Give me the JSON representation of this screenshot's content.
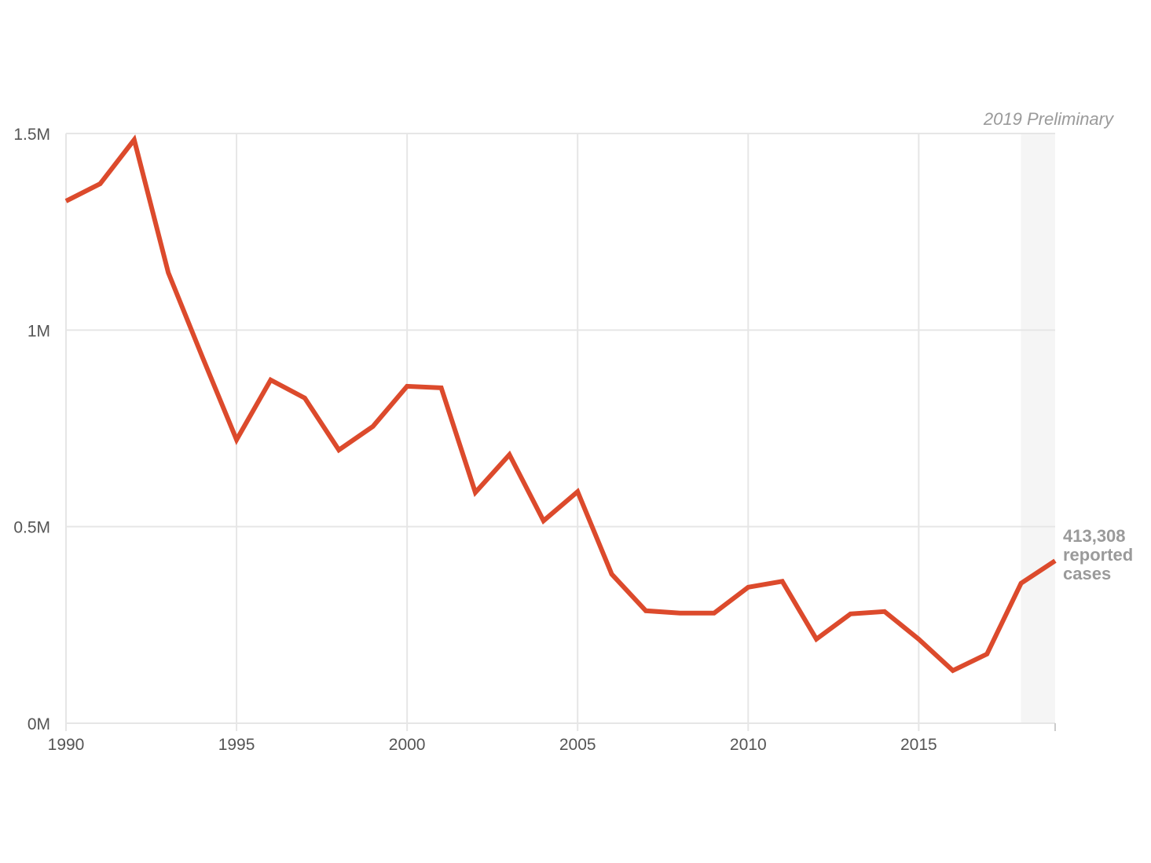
{
  "chart_data": {
    "type": "line",
    "title": "",
    "xlabel": "",
    "ylabel": "",
    "x": [
      1990,
      1991,
      1992,
      1993,
      1994,
      1995,
      1996,
      1997,
      1998,
      1999,
      2000,
      2001,
      2002,
      2003,
      2004,
      2005,
      2006,
      2007,
      2008,
      2009,
      2010,
      2011,
      2012,
      2013,
      2014,
      2015,
      2016,
      2017,
      2018,
      2019
    ],
    "series": [
      {
        "name": "Reported cases",
        "color": "#dc4a2c",
        "values": [
          1328000,
          1372000,
          1484000,
          1146000,
          931000,
          721000,
          873000,
          827000,
          695000,
          755000,
          857000,
          853000,
          587000,
          683000,
          515000,
          589000,
          379000,
          286000,
          280000,
          280000,
          346000,
          361000,
          214000,
          278000,
          284000,
          214000,
          134000,
          176000,
          356000,
          413308
        ]
      }
    ],
    "xlim": [
      1990,
      2019
    ],
    "ylim": [
      0,
      1500000
    ],
    "x_ticks": [
      "1990",
      "1995",
      "2000",
      "2005",
      "2010",
      "2015"
    ],
    "y_ticks": [
      "0M",
      "0.5M",
      "1M",
      "1.5M"
    ],
    "y_tick_values": [
      0,
      500000,
      1000000,
      1500000
    ],
    "grid": true,
    "legend": null,
    "shaded_region": {
      "from": 2018,
      "to": 2019,
      "label": "2019 Preliminary",
      "color": "#f5f5f5"
    },
    "annotations": [
      {
        "x": 2019,
        "lines": [
          "413,308",
          "reported",
          "cases"
        ]
      }
    ]
  },
  "labels": {
    "preliminary": "2019 Preliminary",
    "end_value": "413,308",
    "end_line2": "reported",
    "end_line3": "cases"
  }
}
